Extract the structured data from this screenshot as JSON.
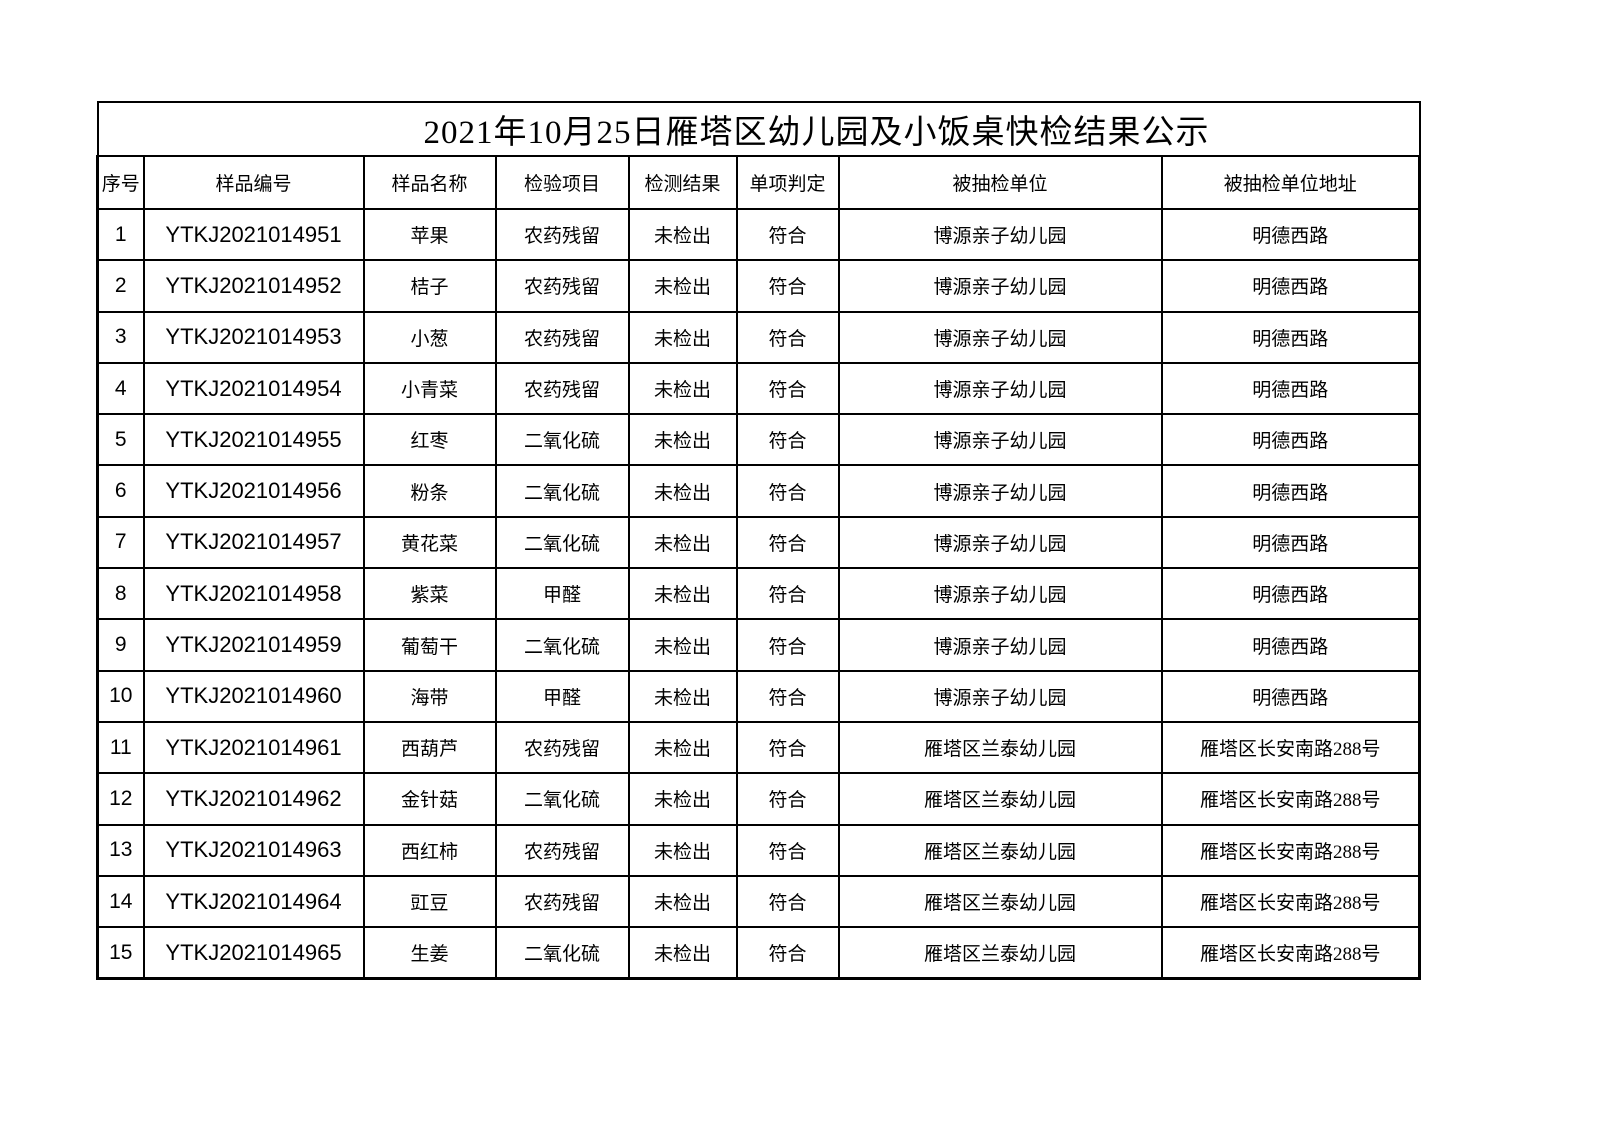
{
  "document": {
    "title": "2021年10月25日雁塔区幼儿园及小饭桌快检结果公示"
  },
  "table": {
    "columns": [
      "序号",
      "样品编号",
      "样品名称",
      "检验项目",
      "检测结果",
      "单项判定",
      "被抽检单位",
      "被抽检单位地址"
    ],
    "rows": [
      [
        "1",
        "YTKJ2021014951",
        "苹果",
        "农药残留",
        "未检出",
        "符合",
        "博源亲子幼儿园",
        "明德西路"
      ],
      [
        "2",
        "YTKJ2021014952",
        "桔子",
        "农药残留",
        "未检出",
        "符合",
        "博源亲子幼儿园",
        "明德西路"
      ],
      [
        "3",
        "YTKJ2021014953",
        "小葱",
        "农药残留",
        "未检出",
        "符合",
        "博源亲子幼儿园",
        "明德西路"
      ],
      [
        "4",
        "YTKJ2021014954",
        "小青菜",
        "农药残留",
        "未检出",
        "符合",
        "博源亲子幼儿园",
        "明德西路"
      ],
      [
        "5",
        "YTKJ2021014955",
        "红枣",
        "二氧化硫",
        "未检出",
        "符合",
        "博源亲子幼儿园",
        "明德西路"
      ],
      [
        "6",
        "YTKJ2021014956",
        "粉条",
        "二氧化硫",
        "未检出",
        "符合",
        "博源亲子幼儿园",
        "明德西路"
      ],
      [
        "7",
        "YTKJ2021014957",
        "黄花菜",
        "二氧化硫",
        "未检出",
        "符合",
        "博源亲子幼儿园",
        "明德西路"
      ],
      [
        "8",
        "YTKJ2021014958",
        "紫菜",
        "甲醛",
        "未检出",
        "符合",
        "博源亲子幼儿园",
        "明德西路"
      ],
      [
        "9",
        "YTKJ2021014959",
        "葡萄干",
        "二氧化硫",
        "未检出",
        "符合",
        "博源亲子幼儿园",
        "明德西路"
      ],
      [
        "10",
        "YTKJ2021014960",
        "海带",
        "甲醛",
        "未检出",
        "符合",
        "博源亲子幼儿园",
        "明德西路"
      ],
      [
        "11",
        "YTKJ2021014961",
        "西葫芦",
        "农药残留",
        "未检出",
        "符合",
        "雁塔区兰泰幼儿园",
        "雁塔区长安南路288号"
      ],
      [
        "12",
        "YTKJ2021014962",
        "金针菇",
        "二氧化硫",
        "未检出",
        "符合",
        "雁塔区兰泰幼儿园",
        "雁塔区长安南路288号"
      ],
      [
        "13",
        "YTKJ2021014963",
        "西红柿",
        "农药残留",
        "未检出",
        "符合",
        "雁塔区兰泰幼儿园",
        "雁塔区长安南路288号"
      ],
      [
        "14",
        "YTKJ2021014964",
        "豇豆",
        "农药残留",
        "未检出",
        "符合",
        "雁塔区兰泰幼儿园",
        "雁塔区长安南路288号"
      ],
      [
        "15",
        "YTKJ2021014965",
        "生姜",
        "二氧化硫",
        "未检出",
        "符合",
        "雁塔区兰泰幼儿园",
        "雁塔区长安南路288号"
      ]
    ],
    "colors": {
      "border": "#000000",
      "text": "#000000",
      "background": "#ffffff"
    }
  }
}
